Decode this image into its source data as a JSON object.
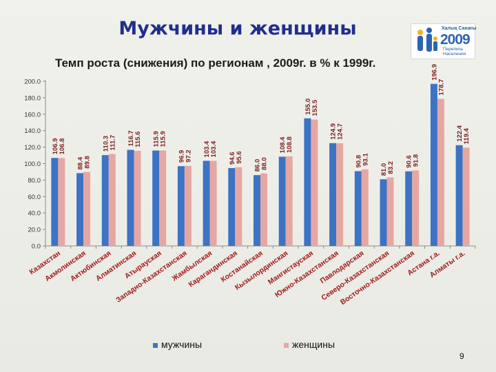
{
  "slide": {
    "title": "Мужчины и женщины",
    "subtitle": "Темп роста (снижения) по регионам , 2009г. в % к 1999г.",
    "page_number": "9"
  },
  "logo": {
    "line1": "Халық Санағы",
    "year": "2009",
    "line2": "Перепись",
    "line3": "Населения"
  },
  "colors": {
    "men": "#3d73c4",
    "women": "#e6a7a3",
    "title": "#1f2f8c"
  },
  "chart_data": {
    "type": "bar",
    "categories": [
      "Казахстан",
      "Акмолинская",
      "Актюбинская",
      "Алматинская",
      "Атырауская",
      "Западно-Казахстанская",
      "Жамбылская",
      "Карагандинская",
      "Костанайская",
      "Кызылординская",
      "Мангистауская",
      "Южно-Казахстанская",
      "Павлодарская",
      "Северо-Казахстанская",
      "Восточно-Казахстанская",
      "Астана г.а.",
      "Алматы г.а."
    ],
    "series": [
      {
        "name": "мужчины",
        "values": [
          106.9,
          88.4,
          110.3,
          116.7,
          115.9,
          96.9,
          103.4,
          94.6,
          86.0,
          108.4,
          155.0,
          124.9,
          90.8,
          81.0,
          90.6,
          196.9,
          122.4
        ]
      },
      {
        "name": "женщины",
        "values": [
          106.8,
          89.8,
          111.7,
          115.6,
          115.9,
          97.2,
          103.4,
          95.6,
          88.0,
          108.8,
          153.5,
          124.7,
          93.1,
          83.2,
          91.8,
          178.7,
          119.4
        ]
      }
    ],
    "data_labels": [
      [
        "106.9",
        "106.8"
      ],
      [
        "88.4",
        "89.8"
      ],
      [
        "110.3",
        "111.7"
      ],
      [
        "116.7",
        "115.6"
      ],
      [
        "115.9",
        "115.9"
      ],
      [
        "96.9",
        "97.2"
      ],
      [
        "103.4",
        "103.4"
      ],
      [
        "94.6",
        "95.6"
      ],
      [
        "86.0",
        "88.0"
      ],
      [
        "108.4",
        "108.8"
      ],
      [
        "155.0",
        "153.5"
      ],
      [
        "124.9",
        "124.7"
      ],
      [
        "90.8",
        "93.1"
      ],
      [
        "81.0",
        "83.2"
      ],
      [
        "90.6",
        "91.8"
      ],
      [
        "196.9",
        "178.7"
      ],
      [
        "122.4",
        "119.4"
      ]
    ],
    "yticks": [
      "0.0",
      "20.0",
      "40.0",
      "60.0",
      "80.0",
      "100.0",
      "120.0",
      "140.0",
      "160.0",
      "180.0",
      "200.0"
    ],
    "ylim": [
      0,
      200
    ],
    "grid": false,
    "legend": "bottom"
  }
}
